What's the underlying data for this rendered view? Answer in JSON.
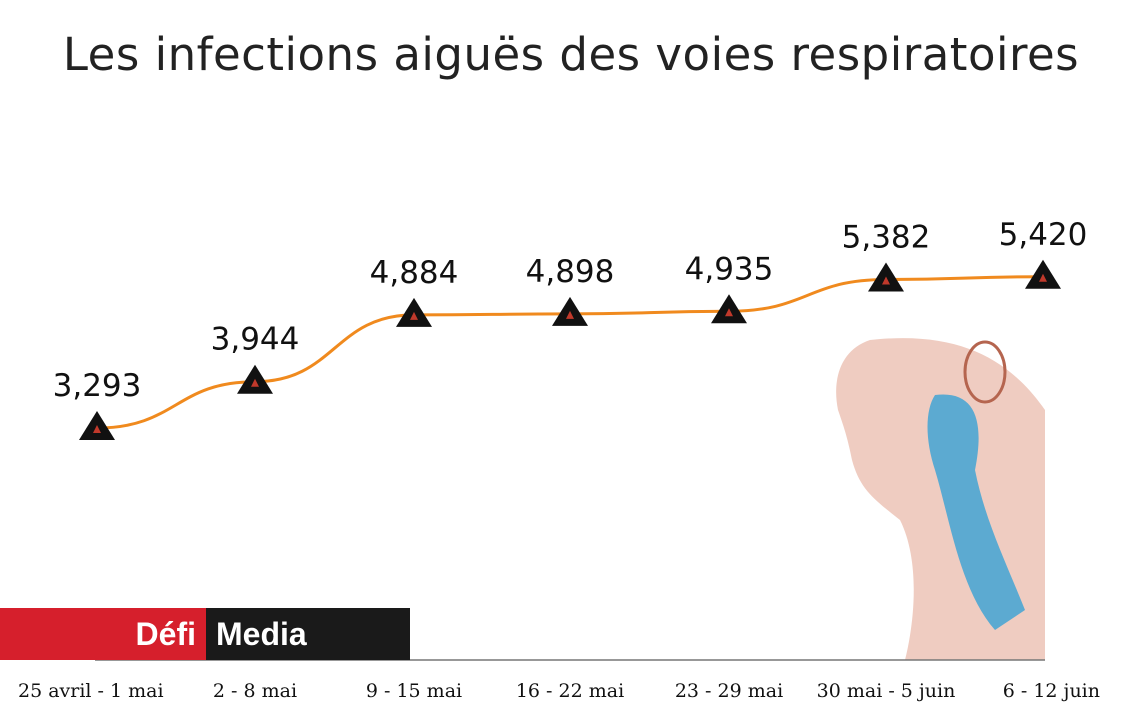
{
  "colors": {
    "line": "#f08a1e",
    "marker": "#111111",
    "marker_dot": "#c0392b",
    "logo_red": "#d61f2c",
    "logo_black": "#1a1a1a"
  },
  "logo": {
    "part1": "Défi",
    "part2": "Media"
  },
  "chart_data": {
    "type": "line",
    "title": "Les infections aiguës des voies respiratoires",
    "categories": [
      "25 avril - 1 mai",
      "2 - 8 mai",
      "9 - 15 mai",
      "16 - 22 mai",
      "23 - 29 mai",
      "30 mai - 5 juin",
      "6 - 12 juin"
    ],
    "values": [
      3293,
      3944,
      4884,
      4898,
      4935,
      5382,
      5420
    ],
    "value_labels": [
      "3,293",
      "3,944",
      "4,884",
      "4,898",
      "4,935",
      "5,382",
      "5,420"
    ],
    "xlabel": "",
    "ylabel": "",
    "grid": false,
    "legend": "none"
  }
}
